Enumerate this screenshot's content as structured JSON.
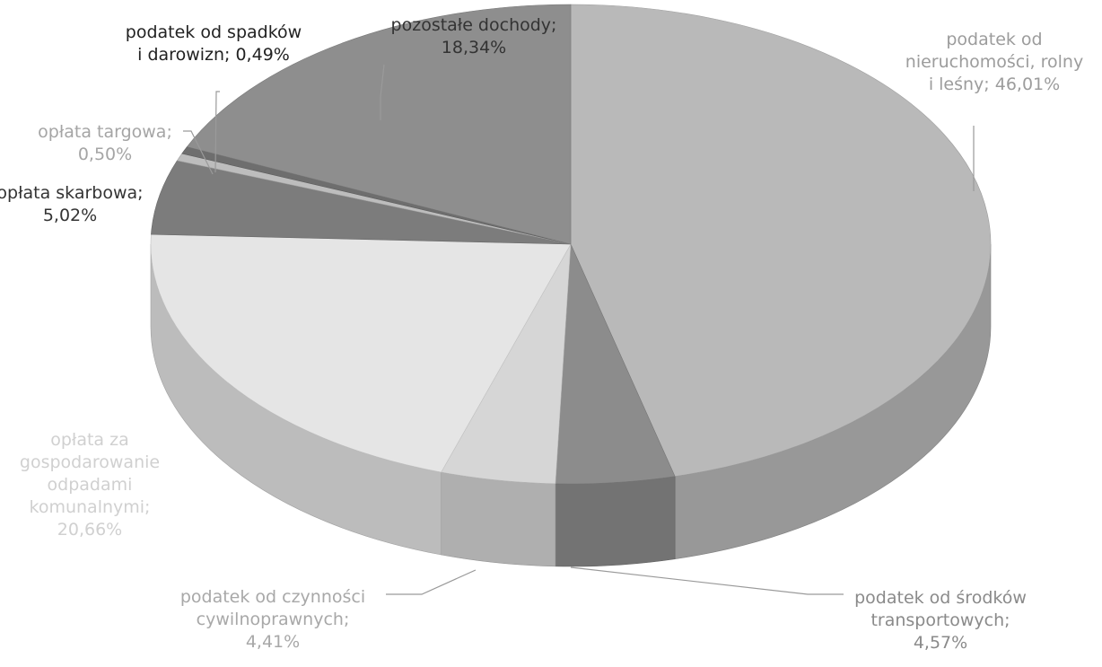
{
  "chart_data": {
    "type": "pie",
    "style": "3d",
    "title": "",
    "slices": [
      {
        "label_lines": [
          "podatek od",
          "nieruchomości, rolny",
          "i leśny; 46,01%"
        ],
        "value": 46.01,
        "color": "#b9b9b9",
        "label_color": "#9c9c9c"
      },
      {
        "label_lines": [
          "podatek od środków",
          "transportowych;",
          "4,57%"
        ],
        "value": 4.57,
        "color": "#8c8c8c",
        "label_color": "#8a8a8a"
      },
      {
        "label_lines": [
          "podatek od czynności",
          "cywilnoprawnych;",
          "4,41%"
        ],
        "value": 4.41,
        "color": "#d6d6d6",
        "label_color": "#a8a8a8"
      },
      {
        "label_lines": [
          "opłata za",
          "gospodarowanie",
          "odpadami",
          "komunalnymi;",
          "20,66%"
        ],
        "value": 20.66,
        "color": "#e5e5e5",
        "label_color": "#d0d0d0"
      },
      {
        "label_lines": [
          "opłata skarbowa;",
          "5,02%"
        ],
        "value": 5.02,
        "color": "#7c7c7c",
        "label_color": "#333333"
      },
      {
        "label_lines": [
          "opłata targowa;",
          "0,50%"
        ],
        "value": 0.5,
        "color": "#bdbdbd",
        "label_color": "#a5a5a5"
      },
      {
        "label_lines": [
          "podatek od spadków",
          "i darowizn; 0,49%"
        ],
        "value": 0.49,
        "color": "#6e6e6e",
        "label_color": "#222222"
      },
      {
        "label_lines": [
          "pozostałe dochody;",
          "18,34%"
        ],
        "value": 18.34,
        "color": "#8e8e8e",
        "label_color": "#333333"
      }
    ]
  }
}
